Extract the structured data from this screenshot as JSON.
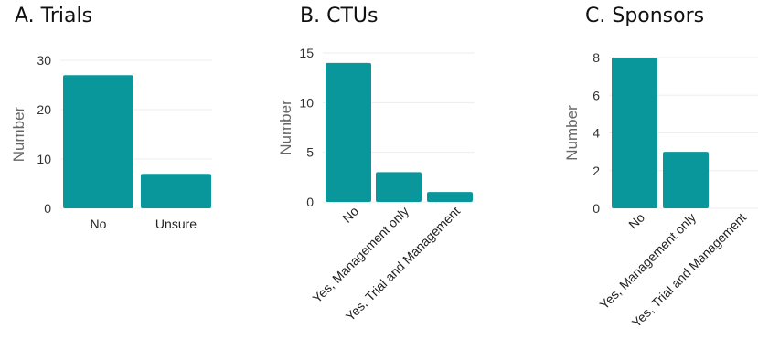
{
  "chart_data": [
    {
      "type": "bar",
      "title": "A.  Trials",
      "ylabel": "Number",
      "categories": [
        "No",
        "Unsure"
      ],
      "values": [
        27,
        7
      ],
      "ylim": [
        0,
        30
      ],
      "yticks": [
        0,
        10,
        20,
        30
      ],
      "bar_color": "#0a979b",
      "grid": true
    },
    {
      "type": "bar",
      "title": "B.  CTUs",
      "ylabel": "Number",
      "categories": [
        "No",
        "Yes, Management only",
        "Yes, Trial and Management"
      ],
      "values": [
        14,
        3,
        1
      ],
      "ylim": [
        0,
        15
      ],
      "yticks": [
        0,
        5,
        10,
        15
      ],
      "bar_color": "#0a979b",
      "grid": true
    },
    {
      "type": "bar",
      "title": "C.  Sponsors",
      "ylabel": "Number",
      "categories": [
        "No",
        "Yes, Management only",
        "Yes, Trial and Management"
      ],
      "values": [
        8,
        3,
        0
      ],
      "ylim": [
        0,
        8
      ],
      "yticks": [
        0,
        2,
        4,
        6,
        8
      ],
      "bar_color": "#0a979b",
      "grid": true
    }
  ]
}
